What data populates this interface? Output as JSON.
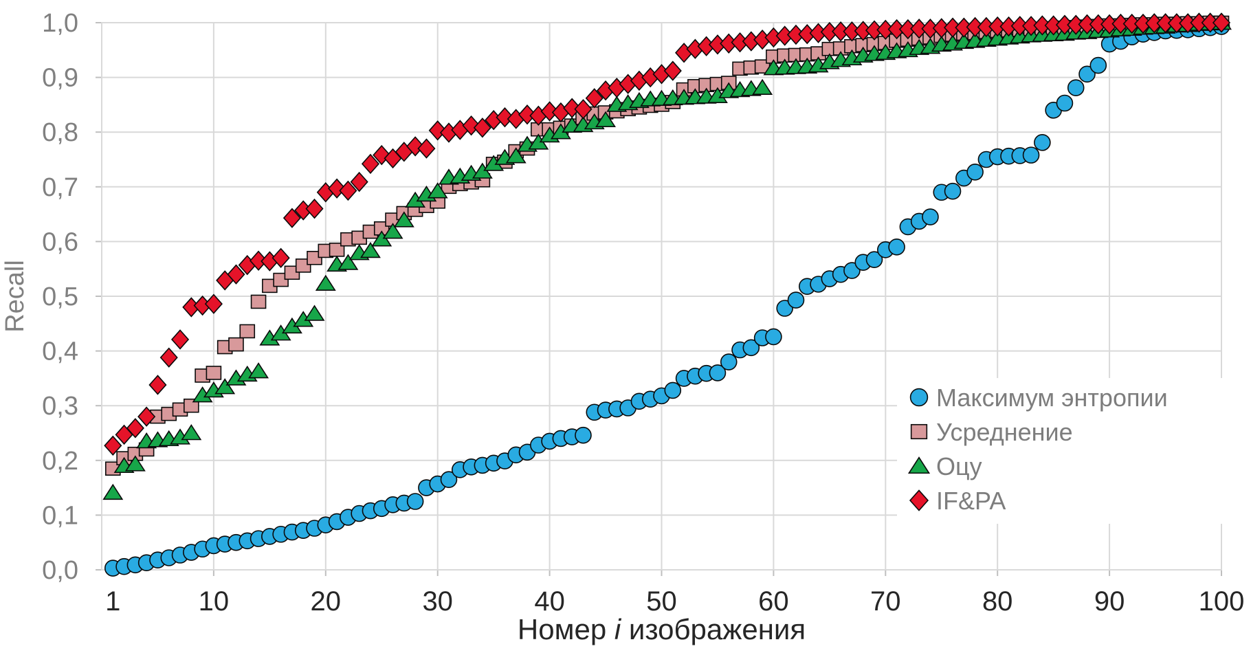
{
  "chart_data": {
    "type": "scatter",
    "title": "",
    "xlabel": "Номер i изображения",
    "xlabel_parts": {
      "prefix": "Номер ",
      "italic": "i",
      "suffix": " изображения"
    },
    "ylabel": "Recall",
    "x_first": 1,
    "x_step": 1,
    "xlim": [
      0,
      100
    ],
    "ylim": [
      0.0,
      1.0
    ],
    "grid": true,
    "legend_position": "inside-right",
    "x_ticks": [
      1,
      10,
      20,
      30,
      40,
      50,
      60,
      70,
      80,
      90,
      100
    ],
    "x_tick_labels": [
      "1",
      "10",
      "20",
      "30",
      "40",
      "50",
      "60",
      "70",
      "80",
      "90",
      "100"
    ],
    "y_ticks": [
      0.0,
      0.1,
      0.2,
      0.3,
      0.4,
      0.5,
      0.6,
      0.7,
      0.8,
      0.9,
      1.0
    ],
    "y_tick_labels": [
      "0,0",
      "0,1",
      "0,2",
      "0,3",
      "0,4",
      "0,5",
      "0,6",
      "0,7",
      "0,8",
      "0,9",
      "1,0"
    ],
    "series": [
      {
        "name": "Максимум энтропии",
        "marker": "circle",
        "color": "#29ABE2",
        "values": [
          0.003,
          0.006,
          0.009,
          0.013,
          0.018,
          0.022,
          0.027,
          0.032,
          0.038,
          0.044,
          0.047,
          0.05,
          0.053,
          0.057,
          0.061,
          0.065,
          0.069,
          0.072,
          0.076,
          0.082,
          0.088,
          0.096,
          0.103,
          0.108,
          0.112,
          0.119,
          0.122,
          0.125,
          0.15,
          0.157,
          0.165,
          0.183,
          0.188,
          0.191,
          0.195,
          0.199,
          0.21,
          0.215,
          0.228,
          0.235,
          0.24,
          0.243,
          0.246,
          0.288,
          0.292,
          0.294,
          0.296,
          0.308,
          0.312,
          0.318,
          0.328,
          0.35,
          0.354,
          0.359,
          0.36,
          0.38,
          0.402,
          0.406,
          0.424,
          0.426,
          0.478,
          0.493,
          0.518,
          0.522,
          0.532,
          0.54,
          0.547,
          0.562,
          0.567,
          0.585,
          0.59,
          0.627,
          0.637,
          0.645,
          0.69,
          0.692,
          0.716,
          0.727,
          0.75,
          0.755,
          0.756,
          0.757,
          0.758,
          0.781,
          0.84,
          0.853,
          0.881,
          0.906,
          0.922,
          0.961,
          0.966,
          0.974,
          0.979,
          0.982,
          0.985,
          0.986,
          0.987,
          0.989,
          0.991,
          0.993
        ]
      },
      {
        "name": "Усреднение",
        "marker": "square",
        "color": "#D8999B",
        "values": [
          0.185,
          0.204,
          0.212,
          0.22,
          0.28,
          0.285,
          0.293,
          0.3,
          0.355,
          0.36,
          0.407,
          0.412,
          0.436,
          0.49,
          0.519,
          0.53,
          0.543,
          0.556,
          0.57,
          0.583,
          0.585,
          0.604,
          0.607,
          0.618,
          0.624,
          0.64,
          0.652,
          0.658,
          0.665,
          0.673,
          0.7,
          0.705,
          0.708,
          0.712,
          0.742,
          0.746,
          0.765,
          0.77,
          0.805,
          0.805,
          0.808,
          0.812,
          0.826,
          0.834,
          0.836,
          0.838,
          0.842,
          0.845,
          0.848,
          0.85,
          0.855,
          0.878,
          0.884,
          0.886,
          0.888,
          0.89,
          0.916,
          0.918,
          0.92,
          0.938,
          0.94,
          0.941,
          0.942,
          0.944,
          0.952,
          0.953,
          0.957,
          0.959,
          0.961,
          0.963,
          0.967,
          0.969,
          0.971,
          0.973,
          0.976,
          0.978,
          0.98,
          0.981,
          0.983,
          0.985,
          0.986,
          0.987,
          0.988,
          0.989,
          0.99,
          0.991,
          0.992,
          0.993,
          0.994,
          0.995,
          0.995,
          0.996,
          0.997,
          0.997,
          0.998,
          0.998,
          0.999,
          0.999,
          1.0,
          1.0
        ]
      },
      {
        "name": "Оцу",
        "marker": "triangle",
        "color": "#17A649",
        "values": [
          0.141,
          0.19,
          0.193,
          0.235,
          0.237,
          0.239,
          0.242,
          0.25,
          0.319,
          0.328,
          0.334,
          0.35,
          0.357,
          0.363,
          0.423,
          0.432,
          0.445,
          0.457,
          0.468,
          0.523,
          0.558,
          0.561,
          0.579,
          0.583,
          0.604,
          0.618,
          0.639,
          0.675,
          0.686,
          0.692,
          0.717,
          0.719,
          0.724,
          0.728,
          0.742,
          0.753,
          0.756,
          0.777,
          0.781,
          0.794,
          0.8,
          0.812,
          0.813,
          0.818,
          0.822,
          0.85,
          0.853,
          0.857,
          0.86,
          0.861,
          0.862,
          0.863,
          0.864,
          0.865,
          0.866,
          0.875,
          0.877,
          0.879,
          0.881,
          0.917,
          0.918,
          0.919,
          0.92,
          0.922,
          0.928,
          0.932,
          0.935,
          0.94,
          0.943,
          0.945,
          0.948,
          0.95,
          0.954,
          0.956,
          0.96,
          0.962,
          0.965,
          0.967,
          0.969,
          0.971,
          0.973,
          0.975,
          0.977,
          0.978,
          0.979,
          0.98,
          0.982,
          0.983,
          0.985,
          0.986,
          0.988,
          0.989,
          0.991,
          0.992,
          0.993,
          0.995,
          0.996,
          0.998,
          0.999,
          1.0
        ]
      },
      {
        "name": "IF&PA",
        "marker": "diamond",
        "color": "#E51329",
        "values": [
          0.227,
          0.247,
          0.259,
          0.28,
          0.338,
          0.388,
          0.421,
          0.48,
          0.483,
          0.486,
          0.529,
          0.54,
          0.557,
          0.565,
          0.564,
          0.57,
          0.643,
          0.657,
          0.66,
          0.69,
          0.697,
          0.693,
          0.709,
          0.742,
          0.758,
          0.752,
          0.764,
          0.774,
          0.77,
          0.803,
          0.799,
          0.804,
          0.812,
          0.808,
          0.822,
          0.827,
          0.824,
          0.832,
          0.83,
          0.838,
          0.836,
          0.844,
          0.842,
          0.862,
          0.876,
          0.881,
          0.888,
          0.894,
          0.9,
          0.906,
          0.912,
          0.945,
          0.952,
          0.957,
          0.96,
          0.962,
          0.964,
          0.966,
          0.969,
          0.973,
          0.976,
          0.978,
          0.979,
          0.981,
          0.983,
          0.984,
          0.984,
          0.985,
          0.986,
          0.987,
          0.988,
          0.988,
          0.989,
          0.989,
          0.99,
          0.991,
          0.991,
          0.992,
          0.992,
          0.993,
          0.993,
          0.994,
          0.994,
          0.995,
          0.995,
          0.996,
          0.996,
          0.997,
          0.997,
          0.997,
          0.998,
          0.998,
          0.998,
          0.999,
          0.999,
          0.999,
          0.999,
          1.0,
          1.0,
          1.0
        ]
      }
    ],
    "colors": {
      "grid": "#D9D9D9",
      "tick_stub": "#BFBFBF",
      "y_tick_text": "#808080",
      "x_tick_text": "#262626",
      "ylabel_text": "#808080",
      "xlabel_text": "#262626",
      "legend_text": "#7D7D7D",
      "marker_border": "#0A0A0A",
      "background": "#FFFFFF"
    }
  }
}
